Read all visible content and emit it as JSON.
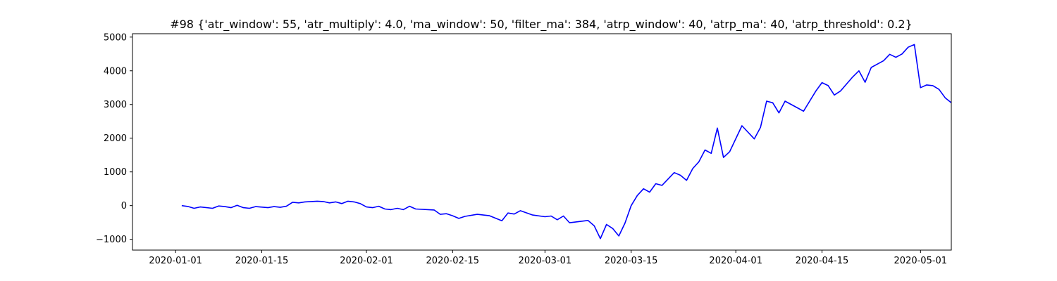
{
  "chart_data": {
    "type": "line",
    "title": "#98 {'atr_window': 55, 'atr_multiply': 4.0, 'ma_window': 50, 'filter_ma': 384, 'atrp_window': 40, 'atrp_ma': 40, 'atrp_threshold': 0.2}",
    "xlabel": "",
    "ylabel": "",
    "x_range": [
      "2019-12-25",
      "2020-05-06"
    ],
    "ylim": [
      -1320,
      5100
    ],
    "grid": false,
    "x_ticks": [
      "2020-01-01",
      "2020-01-15",
      "2020-02-01",
      "2020-02-15",
      "2020-03-01",
      "2020-03-15",
      "2020-04-01",
      "2020-04-15",
      "2020-05-01"
    ],
    "y_ticks": [
      -1000,
      0,
      1000,
      2000,
      3000,
      4000,
      5000
    ],
    "series": [
      {
        "color": "#0000ff",
        "points": [
          [
            "2020-01-02",
            0
          ],
          [
            "2020-01-03",
            -25
          ],
          [
            "2020-01-04",
            -80
          ],
          [
            "2020-01-05",
            -40
          ],
          [
            "2020-01-07",
            -80
          ],
          [
            "2020-01-08",
            -10
          ],
          [
            "2020-01-09",
            -30
          ],
          [
            "2020-01-10",
            -60
          ],
          [
            "2020-01-11",
            10
          ],
          [
            "2020-01-12",
            -60
          ],
          [
            "2020-01-13",
            -80
          ],
          [
            "2020-01-14",
            -30
          ],
          [
            "2020-01-16",
            -60
          ],
          [
            "2020-01-17",
            -30
          ],
          [
            "2020-01-18",
            -50
          ],
          [
            "2020-01-19",
            -20
          ],
          [
            "2020-01-20",
            100
          ],
          [
            "2020-01-21",
            80
          ],
          [
            "2020-01-22",
            110
          ],
          [
            "2020-01-24",
            130
          ],
          [
            "2020-01-25",
            120
          ],
          [
            "2020-01-26",
            80
          ],
          [
            "2020-01-27",
            110
          ],
          [
            "2020-01-28",
            60
          ],
          [
            "2020-01-29",
            130
          ],
          [
            "2020-01-30",
            110
          ],
          [
            "2020-01-31",
            60
          ],
          [
            "2020-02-01",
            -40
          ],
          [
            "2020-02-02",
            -60
          ],
          [
            "2020-02-03",
            -20
          ],
          [
            "2020-02-04",
            -100
          ],
          [
            "2020-02-05",
            -120
          ],
          [
            "2020-02-06",
            -80
          ],
          [
            "2020-02-07",
            -120
          ],
          [
            "2020-02-08",
            -20
          ],
          [
            "2020-02-09",
            -100
          ],
          [
            "2020-02-12",
            -130
          ],
          [
            "2020-02-13",
            -260
          ],
          [
            "2020-02-14",
            -240
          ],
          [
            "2020-02-15",
            -300
          ],
          [
            "2020-02-16",
            -380
          ],
          [
            "2020-02-17",
            -320
          ],
          [
            "2020-02-19",
            -260
          ],
          [
            "2020-02-21",
            -300
          ],
          [
            "2020-02-23",
            -450
          ],
          [
            "2020-02-24",
            -220
          ],
          [
            "2020-02-25",
            -250
          ],
          [
            "2020-02-26",
            -150
          ],
          [
            "2020-02-28",
            -280
          ],
          [
            "2020-03-01",
            -330
          ],
          [
            "2020-03-02",
            -310
          ],
          [
            "2020-03-03",
            -420
          ],
          [
            "2020-03-04",
            -310
          ],
          [
            "2020-03-05",
            -510
          ],
          [
            "2020-03-08",
            -440
          ],
          [
            "2020-03-09",
            -600
          ],
          [
            "2020-03-10",
            -980
          ],
          [
            "2020-03-11",
            -560
          ],
          [
            "2020-03-12",
            -680
          ],
          [
            "2020-03-13",
            -900
          ],
          [
            "2020-03-14",
            -520
          ],
          [
            "2020-03-15",
            0
          ],
          [
            "2020-03-16",
            300
          ],
          [
            "2020-03-17",
            500
          ],
          [
            "2020-03-18",
            400
          ],
          [
            "2020-03-19",
            650
          ],
          [
            "2020-03-20",
            600
          ],
          [
            "2020-03-22",
            980
          ],
          [
            "2020-03-23",
            900
          ],
          [
            "2020-03-24",
            750
          ],
          [
            "2020-03-25",
            1100
          ],
          [
            "2020-03-26",
            1300
          ],
          [
            "2020-03-27",
            1650
          ],
          [
            "2020-03-28",
            1550
          ],
          [
            "2020-03-29",
            2300
          ],
          [
            "2020-03-30",
            1430
          ],
          [
            "2020-03-31",
            1600
          ],
          [
            "2020-04-02",
            2370
          ],
          [
            "2020-04-04",
            1980
          ],
          [
            "2020-04-05",
            2320
          ],
          [
            "2020-04-06",
            3100
          ],
          [
            "2020-04-07",
            3050
          ],
          [
            "2020-04-08",
            2750
          ],
          [
            "2020-04-09",
            3100
          ],
          [
            "2020-04-11",
            2900
          ],
          [
            "2020-04-12",
            2800
          ],
          [
            "2020-04-14",
            3400
          ],
          [
            "2020-04-15",
            3650
          ],
          [
            "2020-04-16",
            3560
          ],
          [
            "2020-04-17",
            3280
          ],
          [
            "2020-04-18",
            3400
          ],
          [
            "2020-04-20",
            3820
          ],
          [
            "2020-04-21",
            4000
          ],
          [
            "2020-04-22",
            3660
          ],
          [
            "2020-04-23",
            4100
          ],
          [
            "2020-04-24",
            4200
          ],
          [
            "2020-04-25",
            4300
          ],
          [
            "2020-04-26",
            4490
          ],
          [
            "2020-04-27",
            4400
          ],
          [
            "2020-04-28",
            4500
          ],
          [
            "2020-04-29",
            4700
          ],
          [
            "2020-04-30",
            4780
          ],
          [
            "2020-05-01",
            3500
          ],
          [
            "2020-05-02",
            3580
          ],
          [
            "2020-05-03",
            3560
          ],
          [
            "2020-05-04",
            3450
          ],
          [
            "2020-05-05",
            3200
          ],
          [
            "2020-05-06",
            3050
          ]
        ]
      }
    ]
  }
}
